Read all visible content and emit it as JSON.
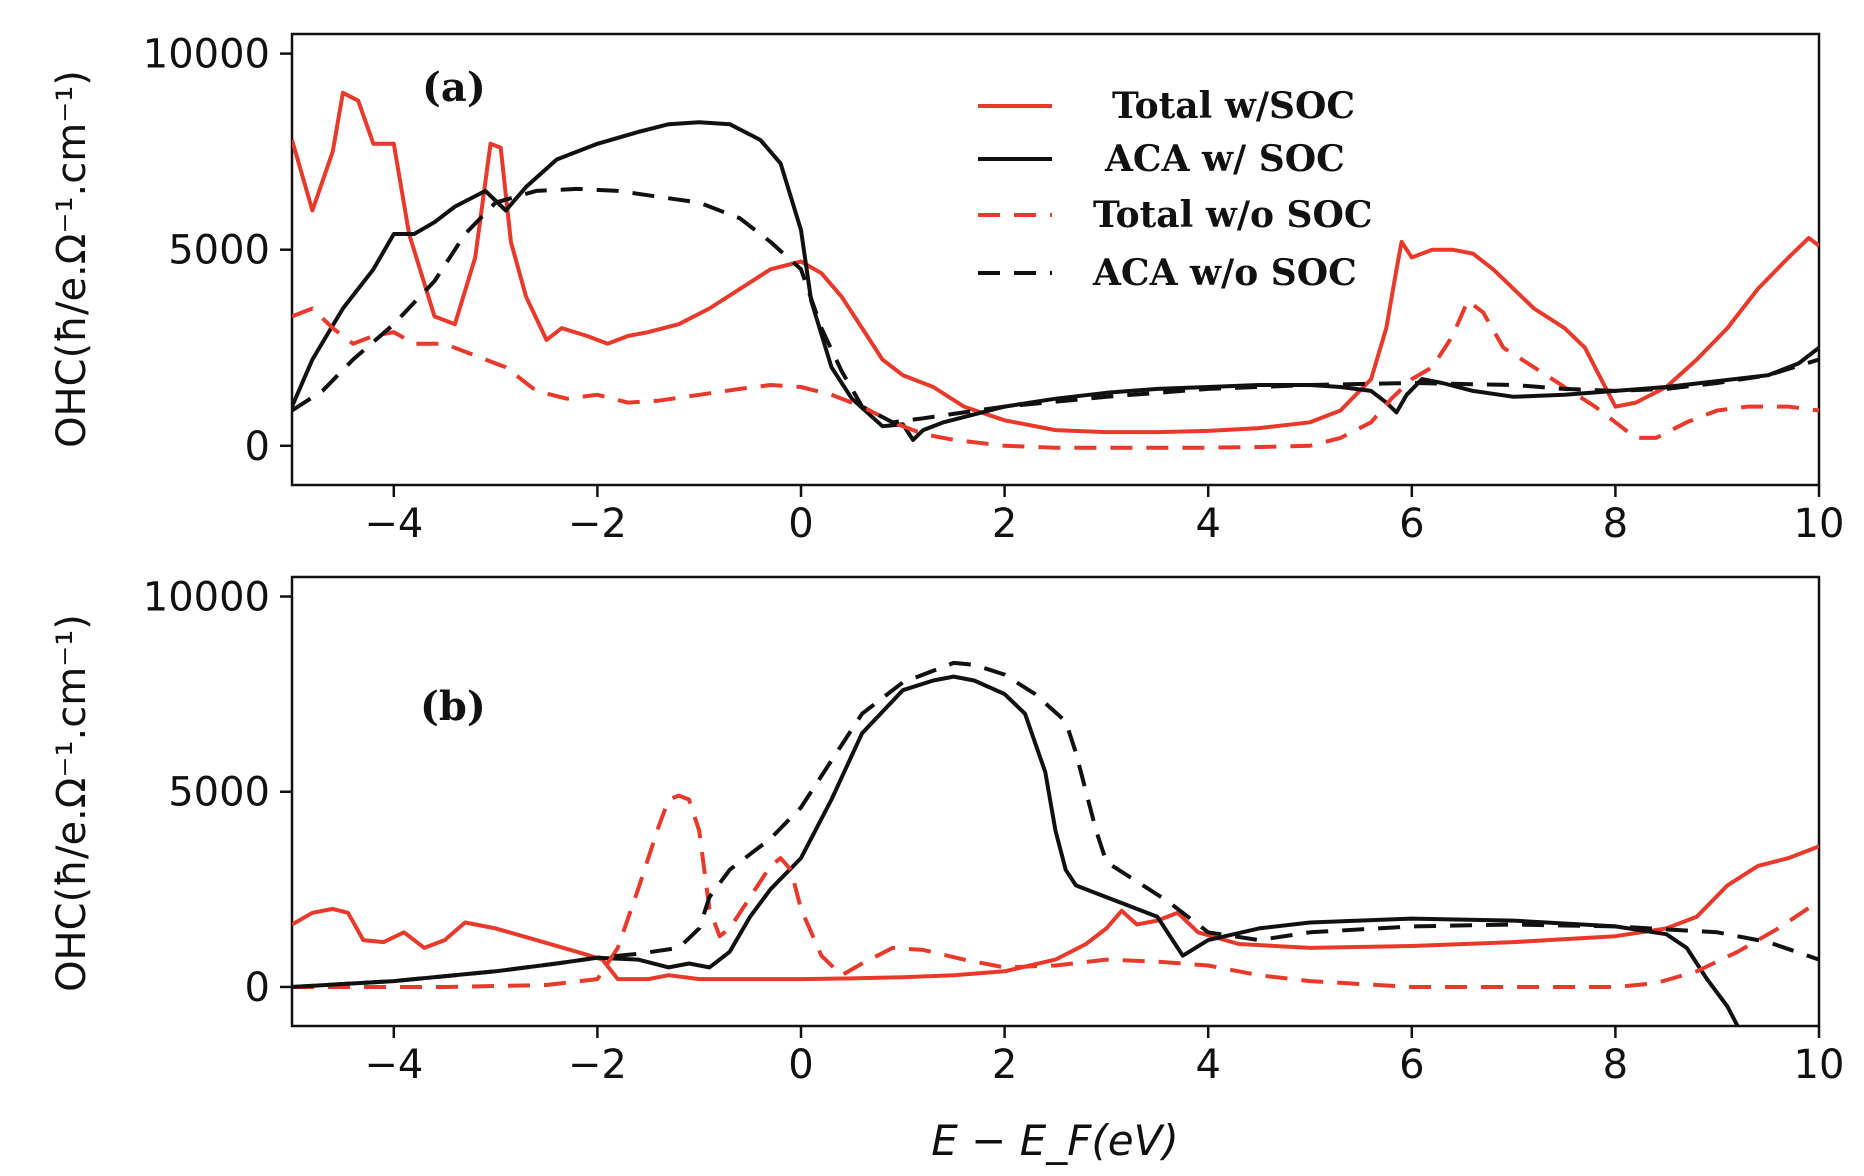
{
  "chart_data": [
    {
      "type": "line",
      "panel_label": "(a)",
      "xlabel": "E − E_F(eV)",
      "ylabel": "OHC(ħ/e.Ω⁻¹.cm⁻¹)",
      "xlim": [
        -5,
        10
      ],
      "ylim": [
        -1000,
        10500
      ],
      "xticks": [
        -4,
        -2,
        0,
        2,
        4,
        6,
        8,
        10
      ],
      "xtick_labels": [
        "−4",
        "−2",
        "0",
        "2",
        "4",
        "6",
        "8",
        "10"
      ],
      "yticks": [
        0,
        5000,
        10000
      ],
      "ytick_labels": [
        "0",
        "5000",
        "10000"
      ],
      "legend": {
        "placement": "top-right",
        "entries": [
          "Total w/SOC",
          "ACA w/ SOC",
          "Total w/o SOC",
          "ACA w/o SOC"
        ]
      },
      "series": [
        {
          "name": "Total w/SOC",
          "color": "#e8392b",
          "dash": "solid",
          "x": [
            -5,
            -4.8,
            -4.6,
            -4.5,
            -4.35,
            -4.2,
            -4.0,
            -3.85,
            -3.6,
            -3.4,
            -3.2,
            -3.05,
            -2.95,
            -2.85,
            -2.7,
            -2.5,
            -2.35,
            -2.1,
            -1.9,
            -1.7,
            -1.5,
            -1.2,
            -0.9,
            -0.6,
            -0.3,
            0.0,
            0.2,
            0.4,
            0.6,
            0.8,
            1.0,
            1.3,
            1.6,
            2.0,
            2.5,
            3.0,
            3.5,
            4.0,
            4.5,
            5.0,
            5.3,
            5.6,
            5.75,
            5.85,
            5.9,
            6.0,
            6.2,
            6.4,
            6.6,
            6.8,
            7.0,
            7.2,
            7.5,
            7.7,
            7.9,
            8.0,
            8.2,
            8.5,
            8.8,
            9.1,
            9.4,
            9.7,
            9.9,
            10.0
          ],
          "y": [
            7800,
            6000,
            7500,
            9000,
            8800,
            7700,
            7700,
            5400,
            3300,
            3100,
            4800,
            7700,
            7600,
            5200,
            3800,
            2700,
            3000,
            2800,
            2600,
            2800,
            2900,
            3100,
            3500,
            4000,
            4500,
            4700,
            4400,
            3800,
            3000,
            2200,
            1800,
            1500,
            1000,
            650,
            400,
            350,
            350,
            380,
            450,
            600,
            900,
            1700,
            3000,
            4500,
            5200,
            4800,
            5000,
            5000,
            4900,
            4500,
            4000,
            3500,
            3000,
            2500,
            1500,
            1000,
            1100,
            1500,
            2200,
            3000,
            4000,
            4800,
            5300,
            5100
          ]
        },
        {
          "name": "ACA w/ SOC",
          "color": "#111111",
          "dash": "solid",
          "x": [
            -5,
            -4.8,
            -4.5,
            -4.2,
            -4.0,
            -3.8,
            -3.6,
            -3.4,
            -3.1,
            -2.9,
            -2.7,
            -2.4,
            -2.0,
            -1.6,
            -1.3,
            -1.0,
            -0.7,
            -0.4,
            -0.2,
            0.0,
            0.1,
            0.3,
            0.5,
            0.8,
            1.0,
            1.1,
            1.2,
            1.4,
            1.7,
            2.0,
            2.5,
            3.0,
            3.5,
            4.0,
            4.5,
            5.0,
            5.3,
            5.6,
            5.75,
            5.85,
            5.95,
            6.1,
            6.3,
            6.6,
            7.0,
            7.5,
            8.0,
            8.5,
            9.0,
            9.5,
            9.8,
            10.0
          ],
          "y": [
            1000,
            2200,
            3500,
            4500,
            5400,
            5400,
            5700,
            6100,
            6500,
            6000,
            6600,
            7300,
            7700,
            8000,
            8200,
            8250,
            8200,
            7800,
            7200,
            5500,
            3700,
            2000,
            1200,
            500,
            550,
            150,
            400,
            600,
            800,
            1000,
            1200,
            1350,
            1450,
            1500,
            1550,
            1550,
            1500,
            1400,
            1100,
            850,
            1300,
            1700,
            1600,
            1400,
            1250,
            1300,
            1400,
            1500,
            1650,
            1800,
            2100,
            2500
          ]
        },
        {
          "name": "Total w/o SOC",
          "color": "#e8392b",
          "dash": "dash",
          "x": [
            -5,
            -4.8,
            -4.6,
            -4.4,
            -4.2,
            -4.0,
            -3.8,
            -3.5,
            -3.2,
            -2.9,
            -2.6,
            -2.3,
            -2.0,
            -1.7,
            -1.4,
            -1.0,
            -0.6,
            -0.3,
            0.0,
            0.3,
            0.6,
            0.9,
            1.2,
            1.5,
            2.0,
            2.5,
            3.0,
            3.5,
            4.0,
            4.5,
            5.0,
            5.3,
            5.6,
            5.8,
            6.0,
            6.2,
            6.4,
            6.55,
            6.7,
            6.9,
            7.2,
            7.5,
            7.8,
            8.0,
            8.2,
            8.4,
            8.7,
            9.0,
            9.3,
            9.7,
            10.0
          ],
          "y": [
            3300,
            3500,
            3000,
            2600,
            2800,
            2900,
            2600,
            2600,
            2300,
            2000,
            1400,
            1200,
            1300,
            1100,
            1150,
            1300,
            1450,
            1550,
            1500,
            1300,
            1000,
            600,
            300,
            150,
            0,
            -50,
            -50,
            -50,
            -50,
            -30,
            0,
            200,
            600,
            1200,
            1700,
            2000,
            2800,
            3700,
            3400,
            2500,
            2000,
            1500,
            1000,
            600,
            200,
            200,
            600,
            900,
            1000,
            1000,
            900
          ]
        },
        {
          "name": "ACA w/o SOC",
          "color": "#111111",
          "dash": "dash",
          "x": [
            -5,
            -4.7,
            -4.4,
            -4.0,
            -3.6,
            -3.3,
            -3.0,
            -2.6,
            -2.2,
            -1.8,
            -1.4,
            -1.0,
            -0.6,
            -0.3,
            0.0,
            0.2,
            0.4,
            0.6,
            0.9,
            1.2,
            1.6,
            2.0,
            3.0,
            4.0,
            5.0,
            6.0,
            7.0,
            7.5,
            8.0,
            8.5,
            9.0,
            9.5,
            10.0
          ],
          "y": [
            900,
            1400,
            2200,
            3100,
            4200,
            5400,
            6200,
            6500,
            6550,
            6500,
            6350,
            6200,
            5800,
            5200,
            4500,
            3000,
            1900,
            1000,
            600,
            700,
            850,
            1000,
            1250,
            1450,
            1550,
            1600,
            1550,
            1450,
            1400,
            1450,
            1600,
            1800,
            2200
          ]
        }
      ]
    },
    {
      "type": "line",
      "panel_label": "(b)",
      "xlabel": "E − E_F(eV)",
      "ylabel": "OHC(ħ/e.Ω⁻¹.cm⁻¹)",
      "xlim": [
        -5,
        10
      ],
      "ylim": [
        -1000,
        10500
      ],
      "xticks": [
        -4,
        -2,
        0,
        2,
        4,
        6,
        8,
        10
      ],
      "xtick_labels": [
        "−4",
        "−2",
        "0",
        "2",
        "4",
        "6",
        "8",
        "10"
      ],
      "yticks": [
        0,
        5000,
        10000
      ],
      "ytick_labels": [
        "0",
        "5000",
        "10000"
      ],
      "series": [
        {
          "name": "Total w/SOC",
          "color": "#e8392b",
          "dash": "solid",
          "x": [
            -5,
            -4.8,
            -4.6,
            -4.45,
            -4.3,
            -4.1,
            -3.9,
            -3.7,
            -3.5,
            -3.3,
            -3.0,
            -2.6,
            -2.2,
            -1.95,
            -1.8,
            -1.5,
            -1.3,
            -1.0,
            -0.5,
            0.0,
            0.5,
            1.0,
            1.5,
            2.0,
            2.5,
            2.8,
            3.0,
            3.15,
            3.3,
            3.5,
            3.7,
            3.9,
            4.3,
            5.0,
            6.0,
            7.0,
            8.0,
            8.5,
            8.8,
            9.1,
            9.4,
            9.7,
            10.0
          ],
          "y": [
            1600,
            1900,
            2000,
            1900,
            1200,
            1150,
            1400,
            1000,
            1200,
            1650,
            1500,
            1200,
            900,
            700,
            200,
            200,
            300,
            200,
            200,
            200,
            220,
            250,
            300,
            400,
            700,
            1100,
            1500,
            1950,
            1600,
            1700,
            1900,
            1400,
            1100,
            1000,
            1050,
            1150,
            1300,
            1500,
            1800,
            2600,
            3100,
            3300,
            3600
          ]
        },
        {
          "name": "ACA w/ SOC",
          "color": "#111111",
          "dash": "solid",
          "x": [
            -5,
            -4.0,
            -3.0,
            -2.4,
            -2.0,
            -1.6,
            -1.3,
            -1.1,
            -0.9,
            -0.7,
            -0.5,
            -0.3,
            0.0,
            0.3,
            0.6,
            1.0,
            1.3,
            1.5,
            1.7,
            2.0,
            2.2,
            2.4,
            2.5,
            2.6,
            2.7,
            2.9,
            3.2,
            3.5,
            3.65,
            3.75,
            4.0,
            4.5,
            5.0,
            6.0,
            7.0,
            8.0,
            8.5,
            8.7,
            8.9,
            9.1,
            9.2
          ],
          "y": [
            0,
            150,
            400,
            600,
            750,
            700,
            500,
            600,
            500,
            900,
            1800,
            2500,
            3300,
            4800,
            6500,
            7600,
            7850,
            7950,
            7850,
            7500,
            7000,
            5500,
            4000,
            3000,
            2600,
            2400,
            2100,
            1800,
            1200,
            800,
            1200,
            1500,
            1650,
            1750,
            1700,
            1550,
            1350,
            1000,
            200,
            -500,
            -1000
          ]
        },
        {
          "name": "Total w/o SOC",
          "color": "#e8392b",
          "dash": "dash",
          "x": [
            -5,
            -3.5,
            -2.5,
            -2.0,
            -1.8,
            -1.6,
            -1.4,
            -1.3,
            -1.2,
            -1.1,
            -1.0,
            -0.9,
            -0.8,
            -0.7,
            -0.5,
            -0.3,
            -0.2,
            -0.1,
            0.0,
            0.2,
            0.4,
            0.6,
            0.9,
            1.2,
            1.6,
            2.0,
            2.5,
            3.0,
            3.5,
            4.0,
            4.5,
            5.0,
            6.0,
            7.0,
            8.0,
            8.4,
            8.8,
            9.2,
            9.6,
            10.0
          ],
          "y": [
            0,
            0,
            50,
            200,
            1000,
            2500,
            4100,
            4800,
            4900,
            4800,
            4000,
            2000,
            1300,
            1500,
            2300,
            3100,
            3300,
            3000,
            2000,
            800,
            300,
            600,
            1000,
            950,
            700,
            500,
            550,
            700,
            650,
            550,
            300,
            150,
            0,
            0,
            0,
            100,
            400,
            900,
            1500,
            2200
          ]
        },
        {
          "name": "ACA w/o SOC",
          "color": "#111111",
          "dash": "dash",
          "x": [
            -5,
            -4.0,
            -3.0,
            -2.4,
            -2.0,
            -1.6,
            -1.2,
            -1.0,
            -0.9,
            -0.7,
            -0.5,
            -0.3,
            0.0,
            0.3,
            0.6,
            1.0,
            1.3,
            1.5,
            1.7,
            2.0,
            2.3,
            2.6,
            2.7,
            2.8,
            2.9,
            3.0,
            3.3,
            3.6,
            4.0,
            4.5,
            5.0,
            6.0,
            7.0,
            8.0,
            9.0,
            9.5,
            10.0
          ],
          "y": [
            0,
            150,
            400,
            600,
            750,
            850,
            1000,
            1500,
            2300,
            3000,
            3400,
            3800,
            4600,
            5800,
            7000,
            7800,
            8100,
            8300,
            8250,
            8000,
            7500,
            6800,
            6000,
            5000,
            4000,
            3200,
            2700,
            2200,
            1400,
            1200,
            1400,
            1550,
            1600,
            1550,
            1400,
            1150,
            700
          ]
        }
      ]
    }
  ]
}
